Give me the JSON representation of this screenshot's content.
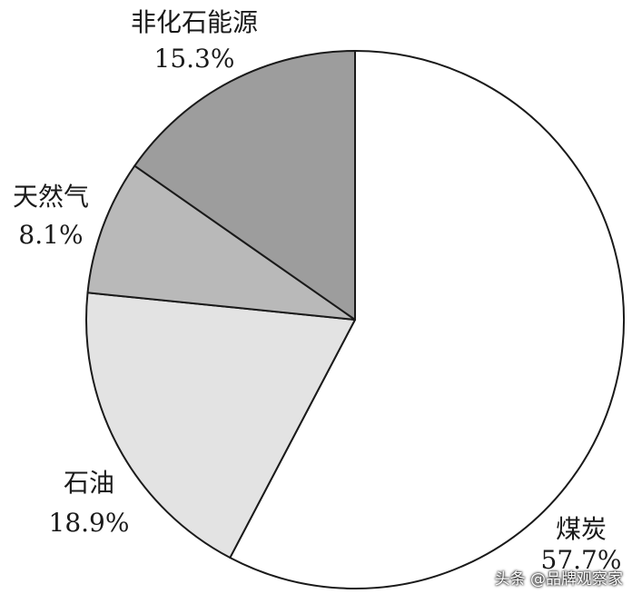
{
  "chart_data": {
    "type": "pie",
    "title": "",
    "slices": [
      {
        "label": "煤炭",
        "value": 57.7,
        "value_text": "57.7%",
        "color": "#ffffff"
      },
      {
        "label": "石油",
        "value": 18.9,
        "value_text": "18.9%",
        "color": "#e3e3e3"
      },
      {
        "label": "天然气",
        "value": 8.1,
        "value_text": "8.1%",
        "color": "#b9b9b9"
      },
      {
        "label": "非化石能源",
        "value": 15.3,
        "value_text": "15.3%",
        "color": "#9d9d9d"
      }
    ],
    "start": "12 o'clock",
    "direction": "clockwise"
  },
  "watermark": "头条 @品牌观察家"
}
